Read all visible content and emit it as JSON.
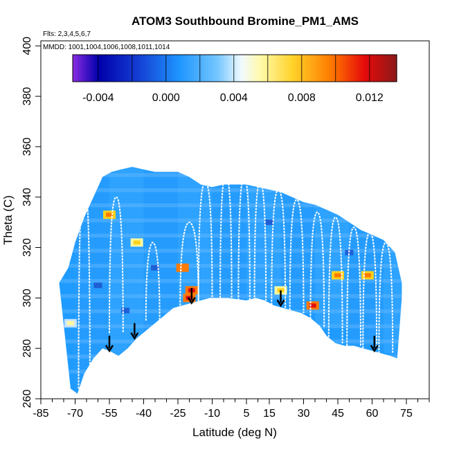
{
  "chart_data": {
    "type": "heatmap",
    "title": "ATOM3 Southbound Bromine_PM1_AMS",
    "flights_note": "Flts: 2,3,4,5,6,7",
    "dates_note": "MMDD: 1001,1004,1006,1008,1011,1014",
    "xlabel": "Latitude (deg N)",
    "ylabel": "Theta (C)",
    "xlim": [
      -85,
      85
    ],
    "ylim": [
      260,
      402
    ],
    "x_ticks": [
      -85,
      -70,
      -55,
      -40,
      -25,
      -10,
      5,
      15,
      30,
      45,
      60,
      75
    ],
    "x_minor_ticks": [
      -80,
      -75,
      -65,
      -60,
      -50,
      -45,
      -35,
      -30,
      -20,
      -15,
      -5,
      0,
      10,
      20,
      25,
      35,
      40,
      50,
      55,
      65,
      70,
      80,
      85
    ],
    "y_ticks": [
      260,
      280,
      300,
      320,
      340,
      360,
      380,
      400
    ],
    "colorbar": {
      "min": -0.0055,
      "max": 0.0136,
      "ticks": [
        "-0.004",
        "0.000",
        "0.004",
        "0.008",
        "0.012"
      ],
      "tick_values": [
        -0.004,
        0.0,
        0.004,
        0.008,
        0.012
      ],
      "boundaries": [
        -0.0055,
        -0.004,
        -0.002,
        0.0,
        0.002,
        0.004,
        0.006,
        0.008,
        0.01,
        0.012,
        0.0136
      ],
      "colors": [
        "#8a2be2",
        "#1c1ca8",
        "#1e5fd6",
        "#1f9bff",
        "#c8e4ff",
        "#fff7a0",
        "#ffd21a",
        "#ff7a00",
        "#e01010",
        "#8b1a1a"
      ]
    },
    "lower_boundary": [
      [
        -72,
        264
      ],
      [
        -69,
        262
      ],
      [
        -66,
        270
      ],
      [
        -62,
        276
      ],
      [
        -58,
        280
      ],
      [
        -55,
        279
      ],
      [
        -51,
        277
      ],
      [
        -47,
        280
      ],
      [
        -43,
        284
      ],
      [
        -39,
        287
      ],
      [
        -35,
        290
      ],
      [
        -31,
        293
      ],
      [
        -27,
        296
      ],
      [
        -23,
        297
      ],
      [
        -19,
        298
      ],
      [
        -15,
        299
      ],
      [
        -11,
        300
      ],
      [
        -7,
        300
      ],
      [
        -3,
        300
      ],
      [
        1,
        299.5
      ],
      [
        5,
        299
      ],
      [
        9,
        300
      ],
      [
        13,
        299
      ],
      [
        17,
        297
      ],
      [
        21,
        296
      ],
      [
        25,
        295
      ],
      [
        29,
        294
      ],
      [
        33,
        292
      ],
      [
        37,
        289
      ],
      [
        40,
        285
      ],
      [
        44,
        282
      ],
      [
        48,
        281
      ],
      [
        52,
        281
      ],
      [
        56,
        280
      ],
      [
        60,
        279
      ],
      [
        64,
        278
      ],
      [
        68,
        277
      ],
      [
        71,
        276
      ]
    ],
    "upper_boundary": [
      [
        -77,
        306
      ],
      [
        -73,
        312
      ],
      [
        -70,
        322
      ],
      [
        -66,
        332
      ],
      [
        -62,
        340
      ],
      [
        -58,
        348
      ],
      [
        -54,
        350
      ],
      [
        -50,
        351
      ],
      [
        -45,
        352
      ],
      [
        -40,
        351
      ],
      [
        -35,
        350
      ],
      [
        -30,
        350
      ],
      [
        -25,
        350
      ],
      [
        -20,
        348
      ],
      [
        -15,
        345
      ],
      [
        -10,
        344
      ],
      [
        -5,
        345
      ],
      [
        0,
        345
      ],
      [
        5,
        345
      ],
      [
        10,
        344
      ],
      [
        15,
        343
      ],
      [
        20,
        342
      ],
      [
        25,
        340
      ],
      [
        30,
        338
      ],
      [
        35,
        337
      ],
      [
        40,
        335
      ],
      [
        45,
        333
      ],
      [
        50,
        330
      ],
      [
        55,
        327
      ],
      [
        60,
        325
      ],
      [
        65,
        323
      ],
      [
        70,
        318
      ],
      [
        73,
        306
      ],
      [
        73,
        300
      ]
    ],
    "background_value": 0.0012,
    "hotspots": [
      {
        "lat": -20,
        "theta": 300,
        "value": 0.0095
      },
      {
        "lat": -19,
        "theta": 303,
        "value": 0.0085
      },
      {
        "lat": -23,
        "theta": 312,
        "value": 0.0082
      },
      {
        "lat": -55,
        "theta": 333,
        "value": 0.0065
      },
      {
        "lat": 34,
        "theta": 297,
        "value": 0.0098
      },
      {
        "lat": 45,
        "theta": 309,
        "value": 0.0075
      },
      {
        "lat": 58,
        "theta": 309,
        "value": 0.0072
      },
      {
        "lat": -43,
        "theta": 322,
        "value": 0.0055
      },
      {
        "lat": 20,
        "theta": 303,
        "value": 0.0045
      },
      {
        "lat": -72,
        "theta": 290,
        "value": 0.0038
      }
    ],
    "cold_spots": [
      {
        "lat": -60,
        "theta": 305,
        "value": -0.0015
      },
      {
        "lat": -48,
        "theta": 295,
        "value": -0.002
      },
      {
        "lat": -35,
        "theta": 312,
        "value": -0.001
      },
      {
        "lat": 15,
        "theta": 330,
        "value": -0.0008
      },
      {
        "lat": 50,
        "theta": 318,
        "value": -0.0012
      }
    ],
    "flight_profiles": [
      {
        "lat": -66,
        "theta_top": 345,
        "theta_bottom": 264,
        "width": 2.5
      },
      {
        "lat": -52,
        "theta_top": 340,
        "theta_bottom": 286,
        "width": 3
      },
      {
        "lat": -36,
        "theta_top": 322,
        "theta_bottom": 291,
        "width": 3
      },
      {
        "lat": -20,
        "theta_top": 330,
        "theta_bottom": 297,
        "width": 4
      },
      {
        "lat": -13,
        "theta_top": 346,
        "theta_bottom": 299,
        "width": 3
      },
      {
        "lat": -4,
        "theta_top": 349,
        "theta_bottom": 300,
        "width": 2.5
      },
      {
        "lat": 4,
        "theta_top": 348,
        "theta_bottom": 299,
        "width": 2.5
      },
      {
        "lat": 11,
        "theta_top": 346,
        "theta_bottom": 299,
        "width": 2.5
      },
      {
        "lat": 19,
        "theta_top": 343,
        "theta_bottom": 296,
        "width": 3
      },
      {
        "lat": 27,
        "theta_top": 339,
        "theta_bottom": 294,
        "width": 3
      },
      {
        "lat": 36,
        "theta_top": 334,
        "theta_bottom": 288,
        "width": 3
      },
      {
        "lat": 44,
        "theta_top": 332,
        "theta_bottom": 282,
        "width": 3
      },
      {
        "lat": 52,
        "theta_top": 328,
        "theta_bottom": 281,
        "width": 3
      },
      {
        "lat": 59,
        "theta_top": 326,
        "theta_bottom": 280,
        "width": 3
      },
      {
        "lat": 66,
        "theta_top": 322,
        "theta_bottom": 278,
        "width": 3
      }
    ],
    "arrows": [
      {
        "lat": -55,
        "theta_top": 285,
        "theta_bottom": 279
      },
      {
        "lat": -44,
        "theta_top": 290,
        "theta_bottom": 284
      },
      {
        "lat": -19,
        "theta_top": 304,
        "theta_bottom": 298
      },
      {
        "lat": 20,
        "theta_top": 303,
        "theta_bottom": 297
      },
      {
        "lat": 61,
        "theta_top": 285,
        "theta_bottom": 279
      }
    ]
  }
}
